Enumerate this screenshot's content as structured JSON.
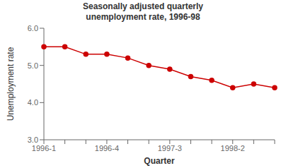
{
  "chart_data": {
    "type": "line",
    "title": "Seasonally adjusted quarterly\nunemployment rate, 1996-98",
    "x_label": "Quarter",
    "y_label": "Unemployment rate",
    "categories": [
      "1996-1",
      null,
      null,
      "1996-4",
      null,
      null,
      "1997-3",
      null,
      null,
      "1998-2",
      null,
      null
    ],
    "values": [
      5.5,
      5.5,
      5.3,
      5.3,
      5.2,
      5.0,
      4.9,
      4.7,
      4.6,
      4.4,
      4.5,
      4.4
    ],
    "color": "#cc0000",
    "marker": "circle",
    "ylim": [
      3.0,
      6.0
    ],
    "yticks": [
      {
        "value": 3.0,
        "label": "3.0"
      },
      {
        "value": 4.0,
        "label": "4.0"
      },
      {
        "value": 5.0,
        "label": "5.0"
      },
      {
        "value": 6.0,
        "label": "6.0"
      }
    ],
    "grid": false
  }
}
